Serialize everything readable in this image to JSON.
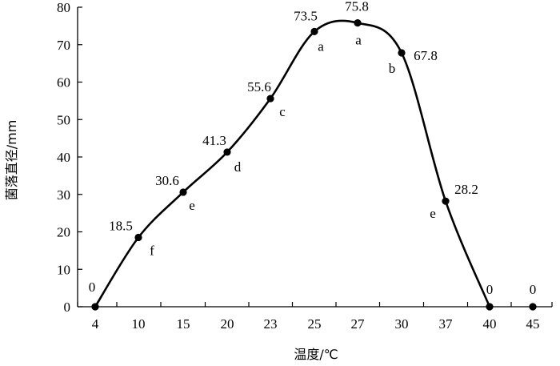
{
  "chart_data": {
    "type": "line",
    "xlabel": "温度/℃",
    "ylabel": "菌落直径/mm",
    "ylim": [
      0,
      80
    ],
    "yticks": [
      0,
      10,
      20,
      30,
      40,
      50,
      60,
      70,
      80
    ],
    "categories": [
      "4",
      "10",
      "15",
      "20",
      "23",
      "25",
      "27",
      "30",
      "37",
      "40",
      "45"
    ],
    "series": [
      {
        "values": [
          0,
          18.5,
          30.6,
          41.3,
          55.6,
          73.5,
          75.8,
          67.8,
          28.2,
          0,
          0
        ],
        "value_labels": [
          "0",
          "18.5",
          "30.6",
          "41.3",
          "55.6",
          "73.5",
          "75.8",
          "67.8",
          "28.2",
          "0",
          "0"
        ],
        "significance": [
          "",
          "f",
          "e",
          "d",
          "c",
          "a",
          "a",
          "b",
          "e",
          "",
          ""
        ]
      }
    ],
    "color": "#000000",
    "grid": false,
    "smooth": true
  }
}
